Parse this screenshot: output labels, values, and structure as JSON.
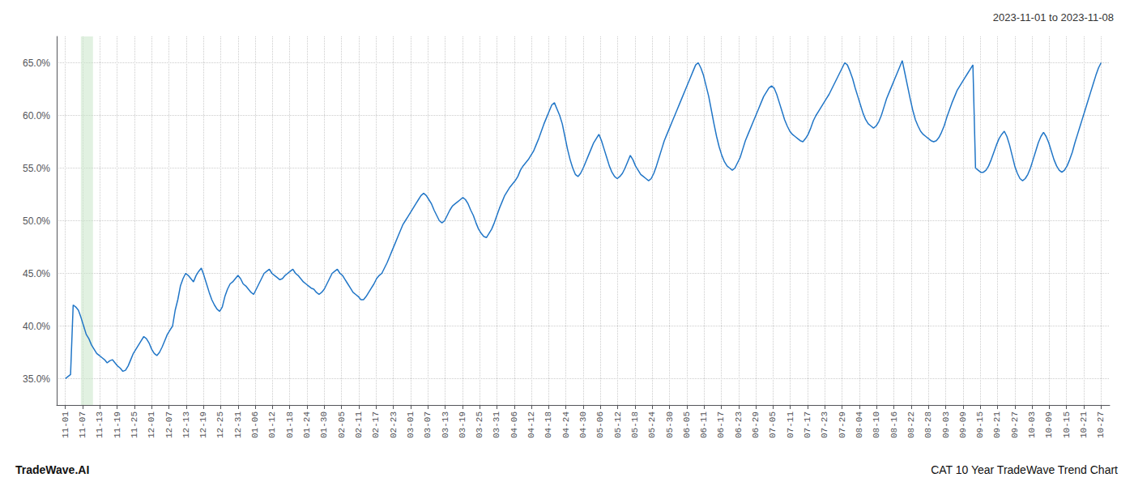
{
  "chart_data": {
    "type": "line",
    "title": "CAT 10 Year TradeWave Trend Chart",
    "subtitle": "2023-11-01 to 2023-11-08",
    "annotations": [
      "TradeWave.AI"
    ],
    "color": "#2176C7",
    "grid": true,
    "shaded_x": [
      0.9,
      1.6
    ],
    "shaded_color": "#c8e6c9",
    "xlim": [
      -0.5,
      60.5
    ],
    "xticks": [
      {
        "value": 0,
        "label": "11-01"
      },
      {
        "value": 1,
        "label": "11-07"
      },
      {
        "value": 2,
        "label": "11-13"
      },
      {
        "value": 3,
        "label": "11-19"
      },
      {
        "value": 4,
        "label": "11-25"
      },
      {
        "value": 5,
        "label": "12-01"
      },
      {
        "value": 6,
        "label": "12-07"
      },
      {
        "value": 7,
        "label": "12-13"
      },
      {
        "value": 8,
        "label": "12-19"
      },
      {
        "value": 9,
        "label": "12-25"
      },
      {
        "value": 10,
        "label": "12-31"
      },
      {
        "value": 11,
        "label": "01-06"
      },
      {
        "value": 12,
        "label": "01-12"
      },
      {
        "value": 13,
        "label": "01-18"
      },
      {
        "value": 14,
        "label": "01-24"
      },
      {
        "value": 15,
        "label": "01-30"
      },
      {
        "value": 16,
        "label": "02-05"
      },
      {
        "value": 17,
        "label": "02-11"
      },
      {
        "value": 18,
        "label": "02-17"
      },
      {
        "value": 19,
        "label": "02-23"
      },
      {
        "value": 20,
        "label": "03-01"
      },
      {
        "value": 21,
        "label": "03-07"
      },
      {
        "value": 22,
        "label": "03-13"
      },
      {
        "value": 23,
        "label": "03-19"
      },
      {
        "value": 24,
        "label": "03-25"
      },
      {
        "value": 25,
        "label": "03-31"
      },
      {
        "value": 26,
        "label": "04-06"
      },
      {
        "value": 27,
        "label": "04-12"
      },
      {
        "value": 28,
        "label": "04-18"
      },
      {
        "value": 29,
        "label": "04-24"
      },
      {
        "value": 30,
        "label": "04-30"
      },
      {
        "value": 31,
        "label": "05-06"
      },
      {
        "value": 32,
        "label": "05-12"
      },
      {
        "value": 33,
        "label": "05-18"
      },
      {
        "value": 34,
        "label": "05-24"
      },
      {
        "value": 35,
        "label": "05-30"
      },
      {
        "value": 36,
        "label": "06-05"
      },
      {
        "value": 37,
        "label": "06-11"
      },
      {
        "value": 38,
        "label": "06-17"
      },
      {
        "value": 39,
        "label": "06-23"
      },
      {
        "value": 40,
        "label": "06-29"
      },
      {
        "value": 41,
        "label": "07-05"
      },
      {
        "value": 42,
        "label": "07-11"
      },
      {
        "value": 43,
        "label": "07-17"
      },
      {
        "value": 44,
        "label": "07-23"
      },
      {
        "value": 45,
        "label": "07-29"
      },
      {
        "value": 46,
        "label": "08-04"
      },
      {
        "value": 47,
        "label": "08-10"
      },
      {
        "value": 48,
        "label": "08-16"
      },
      {
        "value": 49,
        "label": "08-22"
      },
      {
        "value": 50,
        "label": "08-28"
      },
      {
        "value": 51,
        "label": "09-03"
      },
      {
        "value": 52,
        "label": "09-09"
      },
      {
        "value": 53,
        "label": "09-15"
      },
      {
        "value": 54,
        "label": "09-21"
      },
      {
        "value": 55,
        "label": "09-27"
      },
      {
        "value": 56,
        "label": "10-03"
      },
      {
        "value": 57,
        "label": "10-09"
      },
      {
        "value": 58,
        "label": "10-15"
      },
      {
        "value": 59,
        "label": "10-21"
      },
      {
        "value": 60,
        "label": "10-27"
      }
    ],
    "ylim": [
      0.325,
      0.675
    ],
    "yticks": [
      {
        "value": 0.35,
        "label": "35.0%"
      },
      {
        "value": 0.4,
        "label": "40.0%"
      },
      {
        "value": 0.45,
        "label": "45.0%"
      },
      {
        "value": 0.5,
        "label": "50.0%"
      },
      {
        "value": 0.55,
        "label": "55.0%"
      },
      {
        "value": 0.6,
        "label": "60.0%"
      },
      {
        "value": 0.65,
        "label": "65.0%"
      }
    ],
    "x": [
      0,
      0.1515151515151515,
      0.303030303030303,
      0.4545454545454545,
      0.606060606060606,
      0.7575757575757575,
      0.909090909090909,
      1.0606060606060606,
      1.2121212121212122,
      1.3636363636363635,
      1.5151515151515151,
      1.6666666666666665,
      1.8181818181818181,
      1.9696969696969695,
      2.121212121212121,
      2.2727272727272725,
      2.4242424242424243,
      2.5757575757575757,
      2.727272727272727,
      2.878787878787879,
      3.0303030303030303,
      3.1818181818181817,
      3.3333333333333335,
      3.484848484848485,
      3.6363636363636362,
      3.7878787878787876,
      3.9393939393939394,
      4.090909090909091,
      4.242424242424242,
      4.393939393939394,
      4.545454545454545,
      4.696969696969697,
      4.848484848484849,
      5,
      5.151515151515151,
      5.303030303030303,
      5.454545454545454,
      5.606060606060606,
      5.757575757575758,
      5.909090909090909,
      6.0606060606060606,
      6.212121212121212,
      6.363636363636363,
      6.515151515151515,
      6.666666666666667,
      6.818181818181818,
      6.96969696969697,
      7.121212121212121,
      7.2727272727272725,
      7.424242424242424,
      7.575757575757576,
      7.7272727272727275,
      7.878787878787879,
      8.030303030303031,
      8.181818181818182,
      8.333333333333334,
      8.484848484848484,
      8.636363636363637,
      8.787878787878787,
      8.93939393939394,
      9.090909090909092,
      9.242424242424242,
      9.393939393939394,
      9.545454545454545,
      9.696969696969697,
      9.848484848484848,
      10,
      10.151515151515152,
      10.303030303030303,
      10.454545454545455,
      10.606060606060606,
      10.757575757575758,
      10.909090909090908,
      11.06060606060606,
      11.212121212121213,
      11.363636363636363,
      11.515151515151516,
      11.666666666666666,
      11.818181818181818,
      11.969696969696969,
      12.121212121212121,
      12.272727272727273,
      12.424242424242424,
      12.575757575757576,
      12.727272727272727,
      12.878787878787879,
      13.030303030303031,
      13.181818181818182,
      13.333333333333334,
      13.484848484848484,
      13.636363636363637,
      13.787878787878787,
      13.93939393939394,
      14.090909090909092,
      14.242424242424242,
      14.393939393939394,
      14.545454545454545,
      14.696969696969697,
      14.848484848484848,
      15,
      15.151515151515152,
      15.303030303030303,
      15.454545454545455,
      15.606060606060606,
      15.757575757575758,
      15.909090909090908,
      16.060606060606062,
      16.21212121212121,
      16.363636363636363,
      16.515151515151516,
      16.666666666666668,
      16.818181818181817,
      16.96969696969697,
      17.12121212121212,
      17.272727272727273,
      17.424242424242426,
      17.575757575757574,
      17.727272727272727,
      17.87878787878788,
      18.03030303030303,
      18.181818181818183,
      18.333333333333332,
      18.484848484848484,
      18.636363636363637,
      18.78787878787879,
      18.939393939393938,
      19.09090909090909,
      19.242424242424242,
      19.393939393939394,
      19.545454545454547,
      19.696969696969695,
      19.848484848484848,
      20,
      20.151515151515152,
      20.303030303030305,
      20.454545454545453,
      20.606060606060606,
      20.757575757575758,
      20.90909090909091,
      21.060606060606062,
      21.21212121212121,
      21.363636363636363,
      21.515151515151516,
      21.666666666666668,
      21.818181818181817,
      21.96969696969697,
      22.12121212121212,
      22.272727272727273,
      22.424242424242426,
      22.575757575757574,
      22.727272727272727,
      22.87878787878788,
      23.03030303030303,
      23.181818181818183,
      23.333333333333332,
      23.484848484848484,
      23.636363636363637,
      23.78787878787879,
      23.939393939393938,
      24.09090909090909,
      24.242424242424242,
      24.393939393939394,
      24.545454545454547,
      24.696969696969695,
      24.848484848484848,
      25,
      25.151515151515152,
      25.303030303030305,
      25.454545454545453,
      25.606060606060606,
      25.757575757575758,
      25.90909090909091,
      26.060606060606062,
      26.21212121212121,
      26.363636363636363,
      26.515151515151516,
      26.666666666666668,
      26.818181818181817,
      26.96969696969697,
      27.12121212121212,
      27.272727272727273,
      27.424242424242426,
      27.575757575757574,
      27.727272727272727,
      27.87878787878788,
      28.03030303030303,
      28.181818181818183,
      28.333333333333332,
      28.484848484848484,
      28.636363636363637,
      28.78787878787879,
      28.939393939393938,
      29.09090909090909,
      29.242424242424242,
      29.393939393939394,
      29.545454545454547,
      29.696969696969695,
      29.848484848484848,
      30,
      30.151515151515152,
      30.303030303030305,
      30.454545454545453,
      30.606060606060606,
      30.757575757575758,
      30.90909090909091,
      31.060606060606062,
      31.21212121212121,
      31.363636363636363,
      31.515151515151516,
      31.666666666666668,
      31.818181818181817,
      31.96969696969697,
      32.121212121212125,
      32.27272727272727,
      32.42424242424242,
      32.57575757575758,
      32.72727272727273,
      32.878787878787875,
      33.03030303030303,
      33.18181818181818,
      33.333333333333336,
      33.484848484848484,
      33.63636363636363,
      33.78787878787879,
      33.93939393939394,
      34.09090909090909,
      34.24242424242424,
      34.39393939393939,
      34.54545454545455,
      34.696969696969695,
      34.84848484848485,
      35,
      35.15151515151515,
      35.303030303030305,
      35.45454545454545,
      35.60606060606061,
      35.75757575757576,
      35.90909090909091,
      36.06060606060606,
      36.21212121212121,
      36.36363636363637,
      36.515151515151516,
      36.666666666666664,
      36.81818181818182,
      36.96969696969697,
      37.121212121212125,
      37.27272727272727,
      37.42424242424242,
      37.57575757575758,
      37.72727272727273,
      37.878787878787875,
      38.03030303030303,
      38.18181818181818,
      38.333333333333336,
      38.484848484848484,
      38.63636363636363,
      38.78787878787879,
      38.93939393939394,
      39.09090909090909,
      39.24242424242424,
      39.39393939393939,
      39.54545454545455,
      39.696969696969695,
      39.84848484848485,
      40,
      40.15151515151515,
      40.303030303030305,
      40.45454545454545,
      40.60606060606061,
      40.75757575757576,
      40.90909090909091,
      41.06060606060606,
      41.21212121212121,
      41.36363636363637,
      41.515151515151516,
      41.666666666666664,
      41.81818181818182,
      41.96969696969697,
      42.121212121212125,
      42.27272727272727,
      42.42424242424242,
      42.57575757575758,
      42.72727272727273,
      42.878787878787875,
      43.03030303030303,
      43.18181818181818,
      43.333333333333336,
      43.484848484848484,
      43.63636363636363,
      43.78787878787879,
      43.93939393939394,
      44.09090909090909,
      44.24242424242424,
      44.39393939393939,
      44.54545454545455,
      44.696969696969695,
      44.84848484848485,
      45,
      45.15151515151515,
      45.303030303030305,
      45.45454545454545,
      45.60606060606061,
      45.75757575757576,
      45.90909090909091,
      46.06060606060606,
      46.21212121212121,
      46.36363636363637,
      46.515151515151516,
      46.666666666666664,
      46.81818181818182,
      46.96969696969697,
      47.121212121212125,
      47.27272727272727,
      47.42424242424242,
      47.57575757575758,
      47.72727272727273,
      47.878787878787875,
      48.03030303030303,
      48.18181818181818,
      48.333333333333336,
      48.484848484848484,
      48.63636363636363,
      48.78787878787879,
      48.93939393939394,
      49.09090909090909,
      49.24242424242424,
      49.39393939393939,
      49.54545454545455,
      49.696969696969695,
      49.84848484848485,
      50,
      50.15151515151515,
      50.303030303030305,
      50.45454545454545,
      50.60606060606061,
      50.75757575757576,
      50.90909090909091,
      51.06060606060606,
      51.21212121212121,
      51.36363636363637,
      51.515151515151516,
      51.666666666666664,
      51.81818181818182,
      51.96969696969697,
      52.121212121212125,
      52.27272727272727,
      52.42424242424242,
      52.57575757575758,
      52.72727272727273,
      52.878787878787875,
      53.03030303030303,
      53.18181818181818,
      53.333333333333336,
      53.484848484848484,
      53.63636363636363,
      53.78787878787879,
      53.93939393939394,
      54.09090909090909,
      54.24242424242424,
      54.39393939393939,
      54.54545454545455,
      54.696969696969695,
      54.84848484848485,
      55,
      55.15151515151515,
      55.303030303030305,
      55.45454545454545,
      55.60606060606061,
      55.75757575757576,
      55.90909090909091,
      56.06060606060606,
      56.21212121212121,
      56.36363636363637,
      56.515151515151516,
      56.666666666666664,
      56.81818181818182,
      56.96969696969697,
      57.121212121212125,
      57.27272727272727,
      57.42424242424242,
      57.57575757575758,
      57.72727272727273,
      57.878787878787875,
      58.03030303030303,
      58.18181818181818,
      58.333333333333336,
      58.484848484848484,
      58.63636363636363,
      58.78787878787879,
      58.93939393939394,
      59.09090909090909,
      59.24242424242424,
      59.39393939393939,
      59.54545454545455,
      59.696969696969695,
      59.84848484848485,
      60
    ],
    "values": [
      0.35,
      0.352,
      0.354,
      0.42,
      0.418,
      0.415,
      0.408,
      0.4,
      0.392,
      0.388,
      0.382,
      0.378,
      0.374,
      0.372,
      0.37,
      0.368,
      0.365,
      0.367,
      0.368,
      0.365,
      0.362,
      0.36,
      0.357,
      0.358,
      0.362,
      0.368,
      0.374,
      0.378,
      0.382,
      0.386,
      0.39,
      0.388,
      0.384,
      0.378,
      0.374,
      0.372,
      0.375,
      0.38,
      0.386,
      0.392,
      0.396,
      0.4,
      0.415,
      0.425,
      0.438,
      0.445,
      0.45,
      0.448,
      0.445,
      0.442,
      0.448,
      0.452,
      0.455,
      0.448,
      0.44,
      0.432,
      0.425,
      0.42,
      0.416,
      0.414,
      0.418,
      0.428,
      0.435,
      0.44,
      0.442,
      0.445,
      0.448,
      0.445,
      0.44,
      0.438,
      0.435,
      0.432,
      0.43,
      0.435,
      0.44,
      0.445,
      0.45,
      0.452,
      0.454,
      0.45,
      0.448,
      0.446,
      0.444,
      0.445,
      0.448,
      0.45,
      0.452,
      0.454,
      0.45,
      0.448,
      0.445,
      0.442,
      0.44,
      0.438,
      0.436,
      0.435,
      0.432,
      0.43,
      0.432,
      0.435,
      0.44,
      0.445,
      0.45,
      0.452,
      0.454,
      0.45,
      0.448,
      0.444,
      0.44,
      0.436,
      0.432,
      0.43,
      0.428,
      0.425,
      0.425,
      0.428,
      0.432,
      0.436,
      0.44,
      0.445,
      0.448,
      0.45,
      0.455,
      0.46,
      0.466,
      0.472,
      0.478,
      0.484,
      0.49,
      0.496,
      0.5,
      0.504,
      0.508,
      0.512,
      0.516,
      0.52,
      0.524,
      0.526,
      0.524,
      0.52,
      0.516,
      0.51,
      0.505,
      0.5,
      0.498,
      0.5,
      0.505,
      0.51,
      0.514,
      0.516,
      0.518,
      0.52,
      0.522,
      0.52,
      0.516,
      0.51,
      0.505,
      0.498,
      0.492,
      0.488,
      0.485,
      0.484,
      0.488,
      0.492,
      0.498,
      0.505,
      0.512,
      0.518,
      0.524,
      0.528,
      0.532,
      0.535,
      0.538,
      0.542,
      0.548,
      0.552,
      0.555,
      0.558,
      0.562,
      0.566,
      0.572,
      0.578,
      0.585,
      0.592,
      0.598,
      0.604,
      0.61,
      0.612,
      0.606,
      0.6,
      0.592,
      0.58,
      0.568,
      0.558,
      0.55,
      0.544,
      0.542,
      0.545,
      0.55,
      0.556,
      0.562,
      0.568,
      0.574,
      0.578,
      0.582,
      0.576,
      0.568,
      0.56,
      0.552,
      0.546,
      0.542,
      0.54,
      0.542,
      0.545,
      0.55,
      0.556,
      0.562,
      0.558,
      0.552,
      0.548,
      0.544,
      0.542,
      0.54,
      0.538,
      0.54,
      0.545,
      0.552,
      0.56,
      0.568,
      0.576,
      0.582,
      0.588,
      0.594,
      0.6,
      0.606,
      0.612,
      0.618,
      0.624,
      0.63,
      0.636,
      0.642,
      0.648,
      0.65,
      0.645,
      0.638,
      0.628,
      0.618,
      0.605,
      0.592,
      0.58,
      0.57,
      0.562,
      0.556,
      0.552,
      0.55,
      0.548,
      0.55,
      0.555,
      0.56,
      0.568,
      0.576,
      0.582,
      0.588,
      0.594,
      0.6,
      0.606,
      0.612,
      0.618,
      0.622,
      0.626,
      0.628,
      0.626,
      0.62,
      0.612,
      0.604,
      0.596,
      0.59,
      0.585,
      0.582,
      0.58,
      0.578,
      0.576,
      0.575,
      0.578,
      0.582,
      0.588,
      0.595,
      0.6,
      0.604,
      0.608,
      0.612,
      0.616,
      0.62,
      0.625,
      0.63,
      0.635,
      0.64,
      0.645,
      0.65,
      0.648,
      0.642,
      0.635,
      0.626,
      0.618,
      0.61,
      0.602,
      0.596,
      0.592,
      0.59,
      0.588,
      0.59,
      0.594,
      0.6,
      0.608,
      0.616,
      0.622,
      0.628,
      0.634,
      0.64,
      0.646,
      0.652,
      0.64,
      0.628,
      0.616,
      0.605,
      0.596,
      0.59,
      0.585,
      0.582,
      0.58,
      0.578,
      0.576,
      0.575,
      0.576,
      0.579,
      0.584,
      0.59,
      0.598,
      0.605,
      0.612,
      0.618,
      0.624,
      0.628,
      0.632,
      0.636,
      0.64,
      0.644,
      0.648,
      0.55,
      0.548,
      0.546,
      0.546,
      0.548,
      0.552,
      0.558,
      0.565,
      0.572,
      0.578,
      0.582,
      0.585,
      0.58,
      0.572,
      0.562,
      0.552,
      0.545,
      0.54,
      0.538,
      0.54,
      0.544,
      0.55,
      0.558,
      0.566,
      0.574,
      0.58,
      0.584,
      0.58,
      0.574,
      0.566,
      0.558,
      0.552,
      0.548,
      0.546,
      0.548,
      0.552,
      0.558,
      0.565,
      0.574,
      0.582,
      0.59,
      0.598,
      0.606,
      0.614,
      0.622,
      0.63,
      0.638,
      0.645,
      0.65
    ]
  }
}
